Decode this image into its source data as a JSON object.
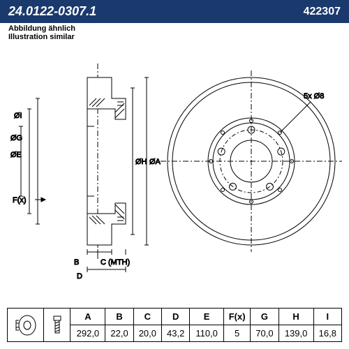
{
  "header": {
    "main_code": "24.0122-0307.1",
    "alt_code": "422307"
  },
  "subtitle": {
    "line1": "Abbildung ähnlich",
    "line2": "Illustration similar"
  },
  "diagram": {
    "side_labels": [
      "ØI",
      "ØG",
      "ØE",
      "ØH",
      "ØA",
      "F(x)",
      "B",
      "C (MTH)",
      "D"
    ],
    "front_label": "5x Ø8",
    "stroke": "#000000",
    "stroke_width": 1,
    "dim_line_color": "#000000"
  },
  "table": {
    "columns": [
      "A",
      "B",
      "C",
      "D",
      "E",
      "F(x)",
      "G",
      "H",
      "I"
    ],
    "values": [
      "292,0",
      "22,0",
      "20,0",
      "43,2",
      "110,0",
      "5",
      "70,0",
      "139,0",
      "16,8"
    ]
  },
  "colors": {
    "header_bg": "#1a3a6e",
    "header_text": "#ffffff",
    "line": "#000000",
    "bg": "#ffffff"
  }
}
